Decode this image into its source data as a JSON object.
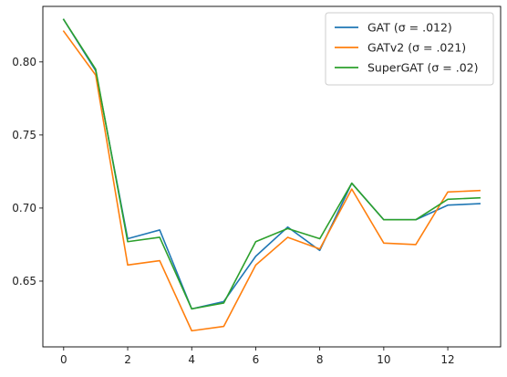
{
  "chart_data": {
    "type": "line",
    "title": "",
    "xlabel": "",
    "ylabel": "",
    "x": [
      0,
      1,
      2,
      3,
      4,
      5,
      6,
      7,
      8,
      9,
      10,
      11,
      12,
      13
    ],
    "xlim": [
      -0.65,
      13.65
    ],
    "ylim": [
      0.605,
      0.838
    ],
    "xticks": [
      0,
      2,
      4,
      6,
      8,
      10,
      12
    ],
    "yticks": [
      0.65,
      0.7,
      0.75,
      0.8
    ],
    "ytick_labels": [
      "0.65",
      "0.70",
      "0.75",
      "0.80"
    ],
    "grid": false,
    "legend_position": "top-right",
    "series": [
      {
        "name": "GAT (σ = .012)",
        "color": "#1f77b4",
        "values": [
          0.829,
          0.794,
          0.679,
          0.685,
          0.631,
          0.636,
          0.667,
          0.687,
          0.671,
          0.717,
          0.692,
          0.692,
          0.702,
          0.703
        ]
      },
      {
        "name": "GATv2 (σ = .021)",
        "color": "#ff7f0e",
        "values": [
          0.821,
          0.791,
          0.661,
          0.664,
          0.616,
          0.619,
          0.661,
          0.68,
          0.672,
          0.713,
          0.676,
          0.675,
          0.711,
          0.712
        ]
      },
      {
        "name": "SuperGAT (σ = .02)",
        "color": "#2ca02c",
        "values": [
          0.829,
          0.795,
          0.677,
          0.68,
          0.631,
          0.635,
          0.677,
          0.686,
          0.679,
          0.717,
          0.692,
          0.692,
          0.706,
          0.707
        ]
      }
    ]
  }
}
